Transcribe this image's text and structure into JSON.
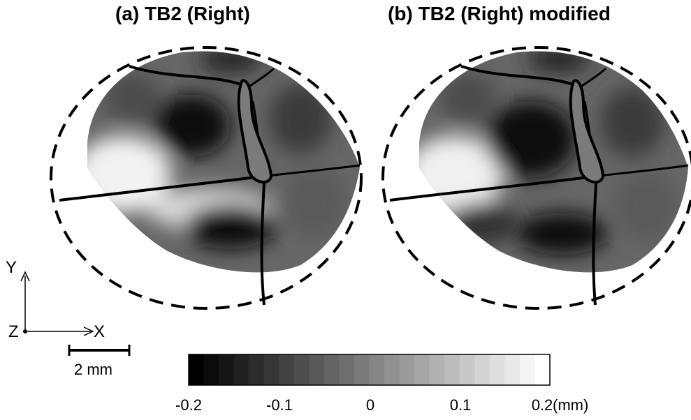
{
  "panels": [
    {
      "title": "(a) TB2 (Right)"
    },
    {
      "title": "(b) TB2 (Right) modified"
    }
  ],
  "axes": {
    "y_label": "Y",
    "z_label": "Z",
    "x_label": "X"
  },
  "scale_bar": {
    "label": "2 mm"
  },
  "colorbar": {
    "min": -0.2,
    "max": 0.2,
    "steps": 24,
    "color_low": "#000000",
    "color_high": "#ffffff",
    "ticks": [
      "-0.2",
      "-0.1",
      "0",
      "0.1",
      "0.2"
    ],
    "unit": "(mm)"
  }
}
